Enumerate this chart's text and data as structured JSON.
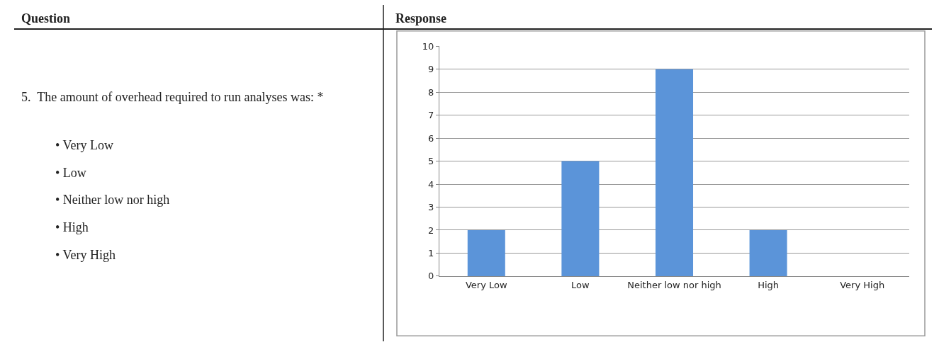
{
  "chart_data": {
    "type": "bar",
    "categories": [
      "Very Low",
      "Low",
      "Neither low nor high",
      "High",
      "Very High"
    ],
    "values": [
      2,
      5,
      9,
      2,
      0
    ],
    "color": "#5b94d9",
    "ylim": [
      0,
      10
    ],
    "yticks": [
      0,
      1,
      2,
      3,
      4,
      5,
      6,
      7,
      8,
      9,
      10
    ],
    "grid": "y",
    "legend": false,
    "annotations": [
      "Question",
      "Response",
      "5.  The amount of overhead required to run analyses was: *",
      "• Very Low",
      "• Low",
      "• Neither low nor high",
      "• High",
      "• Very High"
    ]
  }
}
